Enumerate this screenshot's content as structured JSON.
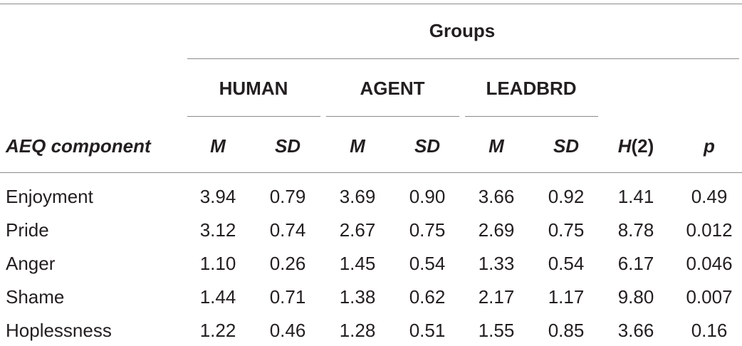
{
  "table": {
    "groups_label": "Groups",
    "group_names": [
      "HUMAN",
      "AGENT",
      "LEADBRD"
    ],
    "row_header": "AEQ component",
    "sub_headers": [
      "M",
      "SD",
      "M",
      "SD",
      "M",
      "SD"
    ],
    "h_label_prefix": "H",
    "h_label_suffix": "(2)",
    "p_label": "p",
    "rows": [
      {
        "component": "Enjoyment",
        "values": [
          "3.94",
          "0.79",
          "3.69",
          "0.90",
          "3.66",
          "0.92",
          "1.41",
          "0.49"
        ]
      },
      {
        "component": "Pride",
        "values": [
          "3.12",
          "0.74",
          "2.67",
          "0.75",
          "2.69",
          "0.75",
          "8.78",
          "0.012"
        ]
      },
      {
        "component": "Anger",
        "values": [
          "1.10",
          "0.26",
          "1.45",
          "0.54",
          "1.33",
          "0.54",
          "6.17",
          "0.046"
        ]
      },
      {
        "component": "Shame",
        "values": [
          "1.44",
          "0.71",
          "1.38",
          "0.62",
          "2.17",
          "1.17",
          "9.80",
          "0.007"
        ]
      },
      {
        "component": "Hoplessness",
        "values": [
          "1.22",
          "0.46",
          "1.28",
          "0.51",
          "1.55",
          "0.85",
          "3.66",
          "0.16"
        ]
      }
    ]
  }
}
